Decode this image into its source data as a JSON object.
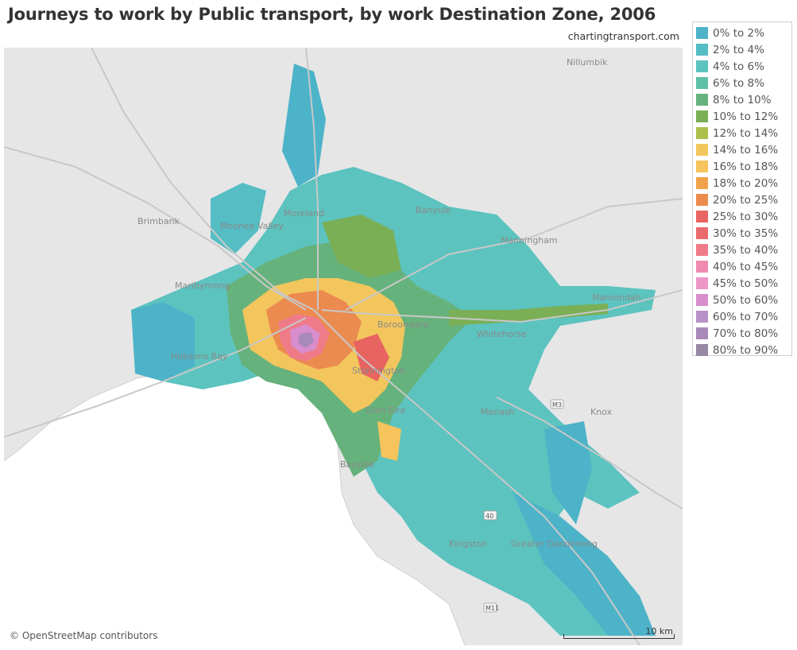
{
  "title": "Journeys to work by Public transport, by work Destination Zone, 2006",
  "source": "chartingtransport.com",
  "attribution": "© OpenStreetMap contributors",
  "scale_label": "10 km",
  "legend": [
    {
      "label": "0% to 2%",
      "color": "#4db3c8"
    },
    {
      "label": "2% to 4%",
      "color": "#55bdc4"
    },
    {
      "label": "4% to 6%",
      "color": "#5cc3bf"
    },
    {
      "label": "6% to 8%",
      "color": "#5fc0a8"
    },
    {
      "label": "8% to 10%",
      "color": "#66b27c"
    },
    {
      "label": "10% to 12%",
      "color": "#7aaf56"
    },
    {
      "label": "12% to 14%",
      "color": "#adc04d"
    },
    {
      "label": "14% to 16%",
      "color": "#f2c65d"
    },
    {
      "label": "16% to 18%",
      "color": "#f6c35c"
    },
    {
      "label": "18% to 20%",
      "color": "#f0a24a"
    },
    {
      "label": "20% to 25%",
      "color": "#ec8b4f"
    },
    {
      "label": "25% to 30%",
      "color": "#e86460"
    },
    {
      "label": "30% to 35%",
      "color": "#ea6b6e"
    },
    {
      "label": "35% to 40%",
      "color": "#ef7b88"
    },
    {
      "label": "40% to 45%",
      "color": "#f08ab0"
    },
    {
      "label": "45% to 50%",
      "color": "#ee96c8"
    },
    {
      "label": "50% to 60%",
      "color": "#d88dcc"
    },
    {
      "label": "60% to 70%",
      "color": "#b892c7"
    },
    {
      "label": "70% to 80%",
      "color": "#a889b8"
    },
    {
      "label": "80% to 90%",
      "color": "#9788a6"
    }
  ],
  "places": [
    {
      "name": "Nillumbik"
    },
    {
      "name": "Brimbank"
    },
    {
      "name": "Moonee Valley"
    },
    {
      "name": "Moreland"
    },
    {
      "name": "Banyule"
    },
    {
      "name": "Manningham"
    },
    {
      "name": "Maribyrnong"
    },
    {
      "name": "Maroondah"
    },
    {
      "name": "Whitehorse"
    },
    {
      "name": "Boroondara"
    },
    {
      "name": "Hobsons Bay"
    },
    {
      "name": "Stonnington"
    },
    {
      "name": "Glen Eira"
    },
    {
      "name": "Monash"
    },
    {
      "name": "Knox"
    },
    {
      "name": "Bayside"
    },
    {
      "name": "Kingston"
    },
    {
      "name": "Greater Dandenong"
    }
  ],
  "road_shields": [
    {
      "name": "M3"
    },
    {
      "name": "40"
    },
    {
      "name": "M11"
    }
  ]
}
